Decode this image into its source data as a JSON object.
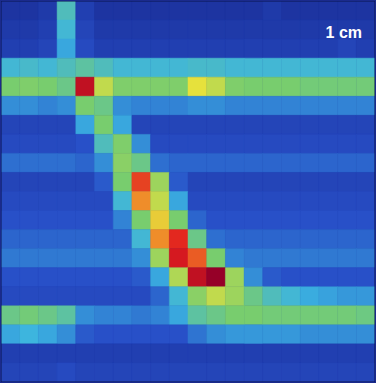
{
  "chart_data": {
    "type": "heatmap",
    "annotation": "1 cm",
    "xlim": [
      0,
      20
    ],
    "ylim": [
      0,
      20
    ],
    "tick_labels": false,
    "zlim": [
      0,
      150
    ],
    "cells": [
      [
        8,
        8,
        10,
        45,
        12,
        8,
        8,
        8,
        8,
        8,
        8,
        8,
        8,
        8,
        10,
        8,
        8,
        8,
        8,
        8
      ],
      [
        10,
        10,
        12,
        40,
        14,
        10,
        10,
        10,
        10,
        10,
        10,
        10,
        10,
        10,
        10,
        10,
        10,
        10,
        10,
        10
      ],
      [
        12,
        12,
        14,
        35,
        16,
        12,
        12,
        12,
        12,
        12,
        12,
        12,
        12,
        12,
        12,
        12,
        12,
        12,
        14,
        12
      ],
      [
        40,
        42,
        40,
        45,
        50,
        45,
        40,
        40,
        40,
        40,
        42,
        42,
        40,
        40,
        40,
        40,
        40,
        40,
        40,
        40
      ],
      [
        60,
        62,
        60,
        55,
        140,
        80,
        62,
        62,
        62,
        62,
        90,
        80,
        62,
        60,
        60,
        60,
        58,
        58,
        58,
        58
      ],
      [
        30,
        30,
        28,
        30,
        60,
        55,
        30,
        28,
        28,
        28,
        30,
        30,
        28,
        28,
        28,
        28,
        28,
        28,
        28,
        28
      ],
      [
        14,
        14,
        14,
        14,
        35,
        60,
        35,
        14,
        14,
        14,
        14,
        14,
        14,
        14,
        14,
        14,
        14,
        14,
        14,
        14
      ],
      [
        16,
        16,
        16,
        16,
        18,
        45,
        62,
        30,
        16,
        16,
        16,
        16,
        16,
        16,
        16,
        16,
        16,
        16,
        16,
        16
      ],
      [
        24,
        24,
        24,
        24,
        22,
        30,
        65,
        55,
        24,
        22,
        22,
        22,
        22,
        22,
        22,
        22,
        22,
        22,
        22,
        22
      ],
      [
        14,
        14,
        14,
        14,
        14,
        20,
        60,
        125,
        70,
        20,
        14,
        14,
        14,
        14,
        14,
        14,
        14,
        14,
        14,
        14
      ],
      [
        16,
        16,
        16,
        16,
        16,
        16,
        40,
        110,
        80,
        35,
        16,
        16,
        16,
        16,
        16,
        16,
        16,
        16,
        16,
        16
      ],
      [
        18,
        18,
        18,
        18,
        18,
        18,
        28,
        60,
        95,
        60,
        22,
        18,
        18,
        18,
        18,
        18,
        18,
        18,
        18,
        18
      ],
      [
        22,
        22,
        22,
        22,
        22,
        22,
        22,
        40,
        110,
        130,
        55,
        24,
        22,
        22,
        22,
        22,
        22,
        22,
        22,
        22
      ],
      [
        26,
        26,
        26,
        26,
        26,
        26,
        26,
        30,
        70,
        135,
        120,
        60,
        28,
        26,
        26,
        26,
        26,
        26,
        26,
        26
      ],
      [
        18,
        18,
        18,
        18,
        18,
        18,
        18,
        20,
        35,
        75,
        140,
        150,
        70,
        30,
        20,
        18,
        18,
        18,
        18,
        18
      ],
      [
        16,
        16,
        16,
        16,
        16,
        16,
        16,
        16,
        22,
        40,
        65,
        80,
        70,
        55,
        45,
        40,
        36,
        34,
        32,
        32
      ],
      [
        55,
        58,
        55,
        50,
        30,
        28,
        28,
        26,
        28,
        35,
        50,
        55,
        60,
        60,
        58,
        58,
        58,
        58,
        58,
        56
      ],
      [
        35,
        38,
        35,
        30,
        20,
        18,
        18,
        18,
        18,
        18,
        25,
        30,
        32,
        32,
        32,
        32,
        30,
        30,
        30,
        30
      ],
      [
        12,
        12,
        12,
        12,
        12,
        12,
        12,
        12,
        12,
        12,
        12,
        12,
        12,
        12,
        12,
        12,
        12,
        12,
        12,
        12
      ],
      [
        14,
        14,
        14,
        16,
        14,
        14,
        14,
        14,
        14,
        14,
        14,
        14,
        14,
        14,
        14,
        14,
        14,
        14,
        14,
        14
      ]
    ]
  }
}
